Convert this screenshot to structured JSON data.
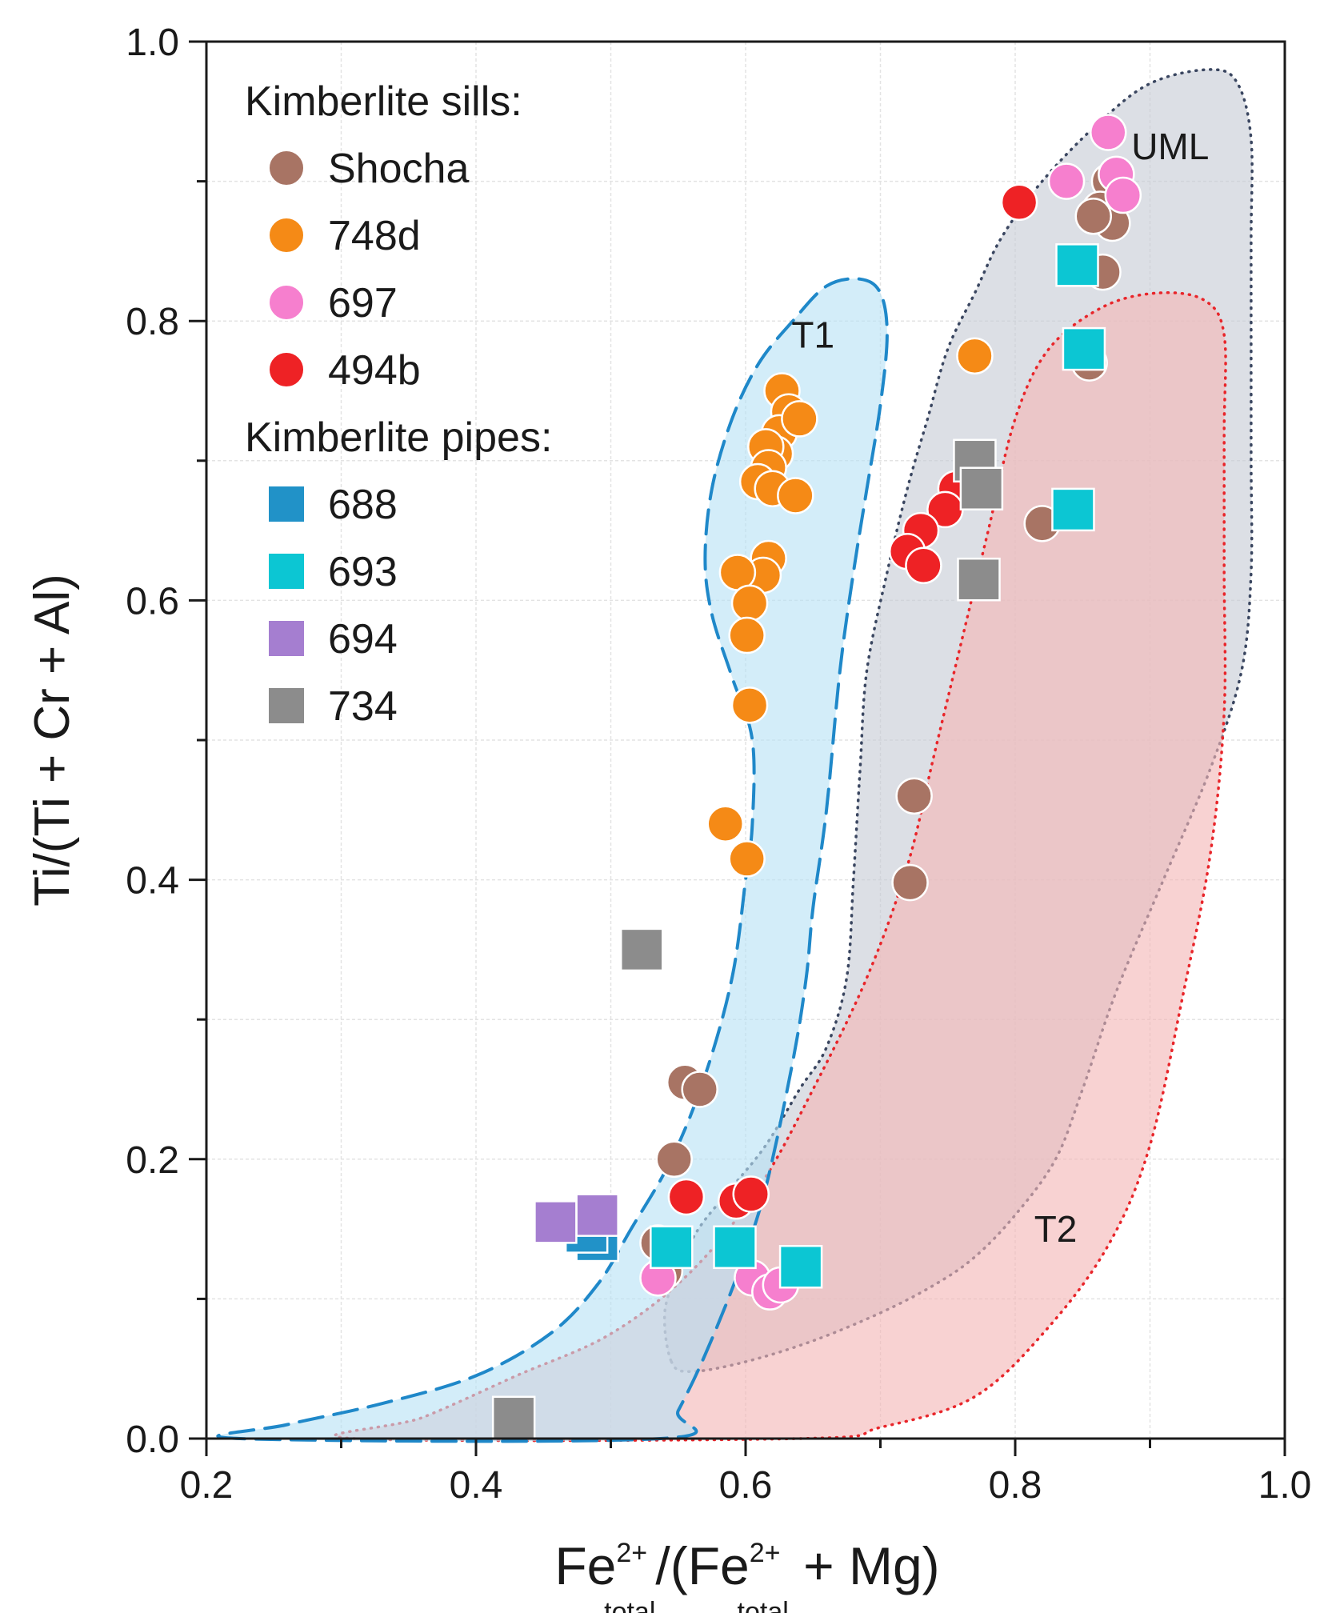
{
  "chart_data": {
    "type": "scatter",
    "title": "",
    "xlabel": {
      "base": "Fe",
      "sup": "2+",
      "sub": "total",
      "open": "/(",
      "base2": "Fe",
      "sup2": "2+",
      "sub2": "total",
      "tail": " + Mg)"
    },
    "ylabel": "Ti/(Ti + Cr + Al)",
    "xlim": [
      0.2,
      1.0
    ],
    "ylim": [
      0.0,
      1.0
    ],
    "xticks": [
      "0.2",
      "0.4",
      "0.6",
      "0.8",
      "1.0"
    ],
    "yticks": [
      "0.0",
      "0.2",
      "0.4",
      "0.6",
      "0.8",
      "1.0"
    ],
    "grid": true,
    "legend_position": "top-left",
    "legend_groups": [
      {
        "title": "Kimberlite sills:",
        "series": [
          "Shocha",
          "748d",
          "697",
          "494b"
        ]
      },
      {
        "title": "Kimberlite pipes:",
        "series": [
          "688",
          "693",
          "694",
          "734"
        ]
      }
    ],
    "fields": [
      {
        "label": "T1",
        "label_at": [
          0.65,
          0.79
        ],
        "fill": "#b8e2f5",
        "stroke": "#1f88c9",
        "style": "dashed",
        "outline": [
          [
            0.225,
            0.0
          ],
          [
            0.26,
            0.01
          ],
          [
            0.33,
            0.025
          ],
          [
            0.4,
            0.045
          ],
          [
            0.455,
            0.075
          ],
          [
            0.49,
            0.11
          ],
          [
            0.515,
            0.15
          ],
          [
            0.545,
            0.2
          ],
          [
            0.57,
            0.26
          ],
          [
            0.59,
            0.33
          ],
          [
            0.6,
            0.4
          ],
          [
            0.605,
            0.44
          ],
          [
            0.605,
            0.5
          ],
          [
            0.59,
            0.545
          ],
          [
            0.575,
            0.59
          ],
          [
            0.57,
            0.63
          ],
          [
            0.575,
            0.68
          ],
          [
            0.59,
            0.73
          ],
          [
            0.61,
            0.77
          ],
          [
            0.635,
            0.8
          ],
          [
            0.66,
            0.825
          ],
          [
            0.685,
            0.83
          ],
          [
            0.7,
            0.82
          ],
          [
            0.705,
            0.79
          ],
          [
            0.7,
            0.74
          ],
          [
            0.69,
            0.68
          ],
          [
            0.68,
            0.62
          ],
          [
            0.67,
            0.55
          ],
          [
            0.66,
            0.45
          ],
          [
            0.65,
            0.38
          ],
          [
            0.645,
            0.33
          ],
          [
            0.635,
            0.27
          ],
          [
            0.615,
            0.18
          ],
          [
            0.595,
            0.12
          ],
          [
            0.57,
            0.06
          ],
          [
            0.55,
            0.02
          ],
          [
            0.537,
            0.0
          ]
        ]
      },
      {
        "label": "UML",
        "label_at": [
          0.915,
          0.925
        ],
        "fill": "#c7ccd5",
        "stroke": "#3a4660",
        "style": "dotted",
        "outline": [
          [
            0.545,
            0.055
          ],
          [
            0.56,
            0.048
          ],
          [
            0.6,
            0.055
          ],
          [
            0.65,
            0.07
          ],
          [
            0.7,
            0.09
          ],
          [
            0.74,
            0.11
          ],
          [
            0.77,
            0.13
          ],
          [
            0.8,
            0.16
          ],
          [
            0.83,
            0.2
          ],
          [
            0.85,
            0.25
          ],
          [
            0.875,
            0.32
          ],
          [
            0.91,
            0.4
          ],
          [
            0.945,
            0.48
          ],
          [
            0.968,
            0.55
          ],
          [
            0.975,
            0.62
          ],
          [
            0.975,
            0.7
          ],
          [
            0.975,
            0.78
          ],
          [
            0.975,
            0.86
          ],
          [
            0.975,
            0.93
          ],
          [
            0.965,
            0.97
          ],
          [
            0.945,
            0.98
          ],
          [
            0.9,
            0.97
          ],
          [
            0.86,
            0.94
          ],
          [
            0.82,
            0.9
          ],
          [
            0.79,
            0.86
          ],
          [
            0.77,
            0.82
          ],
          [
            0.75,
            0.78
          ],
          [
            0.735,
            0.73
          ],
          [
            0.72,
            0.68
          ],
          [
            0.705,
            0.62
          ],
          [
            0.69,
            0.55
          ],
          [
            0.685,
            0.48
          ],
          [
            0.68,
            0.4
          ],
          [
            0.675,
            0.33
          ],
          [
            0.66,
            0.28
          ],
          [
            0.64,
            0.25
          ],
          [
            0.615,
            0.21
          ],
          [
            0.59,
            0.18
          ],
          [
            0.565,
            0.15
          ],
          [
            0.55,
            0.12
          ],
          [
            0.54,
            0.09
          ]
        ]
      },
      {
        "label": "T2",
        "label_at": [
          0.83,
          0.15
        ],
        "fill": "#f3b7b7",
        "stroke": "#e8252a",
        "style": "dotted",
        "outline": [
          [
            0.31,
            0.0
          ],
          [
            0.36,
            0.015
          ],
          [
            0.43,
            0.045
          ],
          [
            0.5,
            0.075
          ],
          [
            0.56,
            0.12
          ],
          [
            0.61,
            0.18
          ],
          [
            0.65,
            0.25
          ],
          [
            0.69,
            0.33
          ],
          [
            0.72,
            0.41
          ],
          [
            0.74,
            0.49
          ],
          [
            0.76,
            0.57
          ],
          [
            0.78,
            0.65
          ],
          [
            0.8,
            0.73
          ],
          [
            0.825,
            0.78
          ],
          [
            0.865,
            0.81
          ],
          [
            0.905,
            0.82
          ],
          [
            0.94,
            0.815
          ],
          [
            0.955,
            0.79
          ],
          [
            0.955,
            0.72
          ],
          [
            0.955,
            0.62
          ],
          [
            0.955,
            0.52
          ],
          [
            0.945,
            0.42
          ],
          [
            0.925,
            0.32
          ],
          [
            0.9,
            0.21
          ],
          [
            0.87,
            0.14
          ],
          [
            0.825,
            0.08
          ],
          [
            0.77,
            0.03
          ],
          [
            0.7,
            0.008
          ],
          [
            0.64,
            0.0
          ]
        ]
      }
    ],
    "series": [
      {
        "name": "Shocha",
        "marker": "circle",
        "color": "#a87464",
        "points": [
          [
            0.555,
            0.255
          ],
          [
            0.566,
            0.25
          ],
          [
            0.547,
            0.2
          ],
          [
            0.535,
            0.14
          ],
          [
            0.54,
            0.12
          ],
          [
            0.725,
            0.46
          ],
          [
            0.722,
            0.398
          ],
          [
            0.82,
            0.655
          ],
          [
            0.855,
            0.77
          ],
          [
            0.865,
            0.835
          ],
          [
            0.87,
            0.9
          ],
          [
            0.863,
            0.88
          ],
          [
            0.872,
            0.87
          ],
          [
            0.858,
            0.875
          ]
        ]
      },
      {
        "name": "748d",
        "marker": "circle",
        "color": "#f58a16",
        "points": [
          [
            0.627,
            0.75
          ],
          [
            0.632,
            0.735
          ],
          [
            0.625,
            0.72
          ],
          [
            0.622,
            0.705
          ],
          [
            0.64,
            0.73
          ],
          [
            0.615,
            0.71
          ],
          [
            0.617,
            0.695
          ],
          [
            0.609,
            0.685
          ],
          [
            0.62,
            0.68
          ],
          [
            0.637,
            0.675
          ],
          [
            0.617,
            0.63
          ],
          [
            0.613,
            0.618
          ],
          [
            0.594,
            0.62
          ],
          [
            0.603,
            0.598
          ],
          [
            0.601,
            0.575
          ],
          [
            0.603,
            0.525
          ],
          [
            0.585,
            0.44
          ],
          [
            0.601,
            0.415
          ],
          [
            0.77,
            0.775
          ]
        ]
      },
      {
        "name": "697",
        "marker": "circle",
        "color": "#f67fce",
        "points": [
          [
            0.869,
            0.935
          ],
          [
            0.838,
            0.9
          ],
          [
            0.875,
            0.905
          ],
          [
            0.88,
            0.89
          ],
          [
            0.535,
            0.115
          ],
          [
            0.605,
            0.115
          ],
          [
            0.618,
            0.105
          ],
          [
            0.626,
            0.11
          ]
        ]
      },
      {
        "name": "494b",
        "marker": "circle",
        "color": "#ee2225",
        "points": [
          [
            0.803,
            0.885
          ],
          [
            0.756,
            0.68
          ],
          [
            0.748,
            0.665
          ],
          [
            0.73,
            0.65
          ],
          [
            0.72,
            0.635
          ],
          [
            0.732,
            0.625
          ],
          [
            0.556,
            0.173
          ],
          [
            0.593,
            0.17
          ],
          [
            0.604,
            0.175
          ]
        ]
      },
      {
        "name": "688",
        "marker": "square",
        "color": "#2192c8",
        "points": [
          [
            0.49,
            0.142
          ],
          [
            0.482,
            0.148
          ]
        ]
      },
      {
        "name": "693",
        "marker": "square",
        "color": "#0cc6d3",
        "points": [
          [
            0.846,
            0.84
          ],
          [
            0.851,
            0.78
          ],
          [
            0.843,
            0.665
          ],
          [
            0.545,
            0.137
          ],
          [
            0.592,
            0.137
          ],
          [
            0.641,
            0.123
          ]
        ]
      },
      {
        "name": "694",
        "marker": "square",
        "color": "#a57ed0",
        "points": [
          [
            0.459,
            0.155
          ],
          [
            0.49,
            0.16
          ]
        ]
      },
      {
        "name": "734",
        "marker": "square",
        "color": "#8c8c8c",
        "points": [
          [
            0.77,
            0.7
          ],
          [
            0.775,
            0.68
          ],
          [
            0.773,
            0.615
          ],
          [
            0.523,
            0.35
          ],
          [
            0.428,
            0.015
          ]
        ]
      }
    ]
  }
}
